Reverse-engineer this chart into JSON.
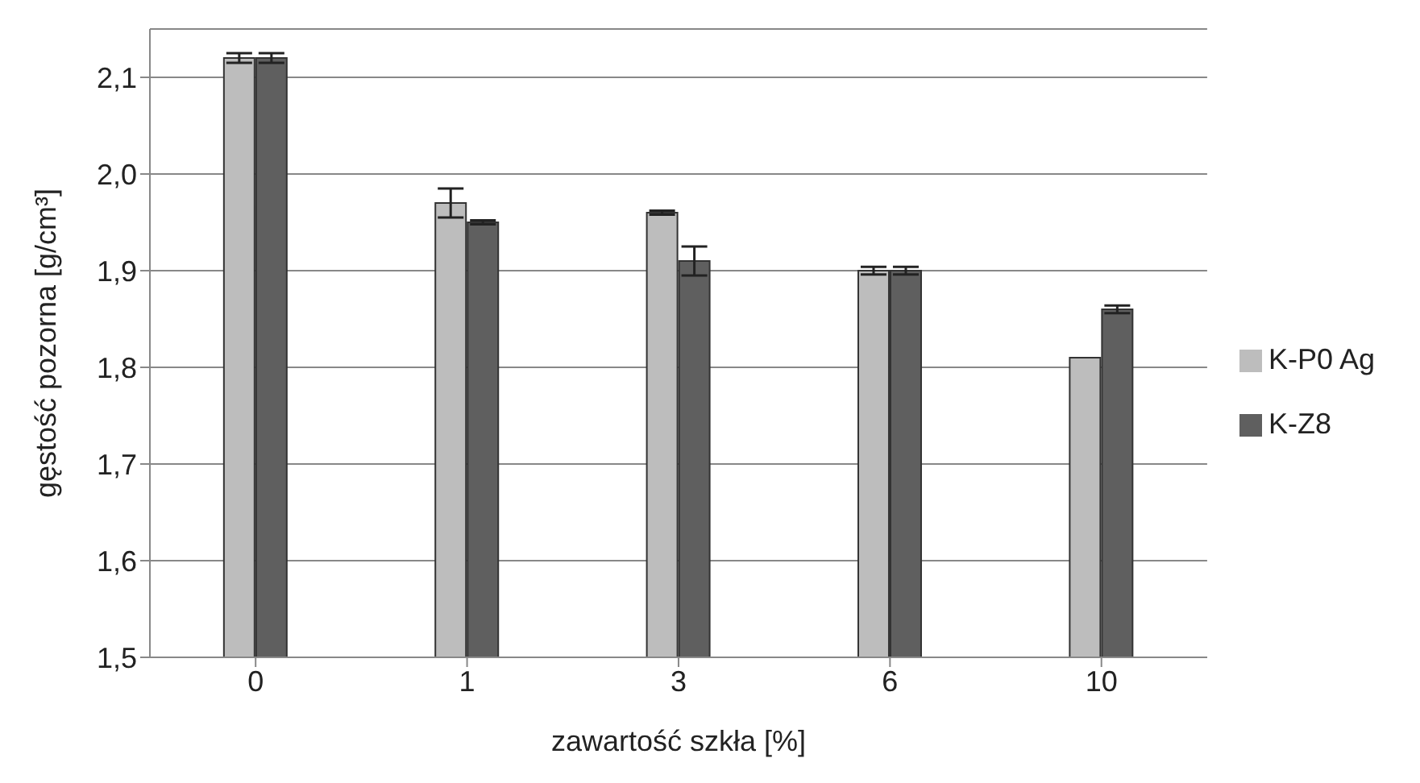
{
  "chart_data": {
    "type": "bar",
    "xlabel": "zawartość szkła [%]",
    "ylabel": "gęstość pozorna [g/cm³]",
    "categories": [
      "0",
      "1",
      "3",
      "6",
      "10"
    ],
    "series": [
      {
        "name": "K-P0 Ag",
        "color": "#bdbdbd",
        "values": [
          2.12,
          1.97,
          1.96,
          1.9,
          1.81
        ],
        "errors": [
          0.005,
          0.015,
          0.002,
          0.004,
          null
        ]
      },
      {
        "name": "K-Z8",
        "color": "#5f5f5f",
        "values": [
          2.12,
          1.95,
          1.91,
          1.9,
          1.86
        ],
        "errors": [
          0.005,
          0.002,
          0.015,
          0.004,
          0.004
        ]
      }
    ],
    "ylim": [
      1.5,
      2.15
    ],
    "yticks": [
      {
        "value": 1.5,
        "label": "1,5"
      },
      {
        "value": 1.6,
        "label": "1,6"
      },
      {
        "value": 1.7,
        "label": "1,7"
      },
      {
        "value": 1.8,
        "label": "1,8"
      },
      {
        "value": 1.9,
        "label": "1,9"
      },
      {
        "value": 2.0,
        "label": "2,0"
      },
      {
        "value": 2.1,
        "label": "2,1"
      }
    ],
    "grid": "y",
    "legend": "right"
  }
}
